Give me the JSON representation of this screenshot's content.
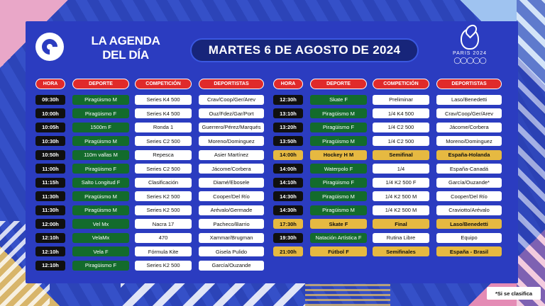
{
  "header": {
    "agenda_line1": "LA AGENDA",
    "agenda_line2": "DEL DÍA",
    "date": "MARTES 6 DE AGOSTO DE 2024",
    "games_label": "PARIS 2024"
  },
  "columns": {
    "hora": "HORA",
    "deporte": "DEPORTE",
    "competicion": "COMPETICIÓN",
    "deportistas": "DEPORTISTAS"
  },
  "left_rows": [
    {
      "hora": "09:30h",
      "deporte": "Piragüismo M",
      "competicion": "Series K4 500",
      "deportistas": "Crav/Coop/Ger/Arev"
    },
    {
      "hora": "10:00h",
      "deporte": "Piragüismo F",
      "competicion": "Series K4 500",
      "deportistas": "Ouz/Fdez/Gar/Port"
    },
    {
      "hora": "10:05h",
      "deporte": "1500m F",
      "competicion": "Ronda 1",
      "deportistas": "Guerrero/Pérez/Marqués"
    },
    {
      "hora": "10:30h",
      "deporte": "Piragüismo M",
      "competicion": "Series C2 500",
      "deportistas": "Moreno/Dominguez"
    },
    {
      "hora": "10:50h",
      "deporte": "110m vallas M",
      "competicion": "Repesca",
      "deportistas": "Asier Martínez"
    },
    {
      "hora": "11:00h",
      "deporte": "Piragüismo F",
      "competicion": "Series C2 500",
      "deportistas": "Jácome/Corbera"
    },
    {
      "hora": "11:15h",
      "deporte": "Salto Longitud F",
      "competicion": "Clasificación",
      "deportistas": "Diamé/Ebosele"
    },
    {
      "hora": "11:30h",
      "deporte": "Piragüismo M",
      "competicion": "Series K2 500",
      "deportistas": "Cooper/Del Río"
    },
    {
      "hora": "11:30h",
      "deporte": "Piragüismo M",
      "competicion": "Series K2 500",
      "deportistas": "Arévalo/Germade"
    },
    {
      "hora": "12:00h",
      "deporte": "Vel Mx",
      "competicion": "Nacra 17",
      "deportistas": "Pacheco/Barrio"
    },
    {
      "hora": "12:10h",
      "deporte": "VelaMx",
      "competicion": "470",
      "deportistas": "Xammar/Brugman"
    },
    {
      "hora": "12:10h",
      "deporte": "Vela F",
      "competicion": "Fórmula Kite",
      "deportistas": "Gisela Pulido"
    },
    {
      "hora": "12:10h",
      "deporte": "Piragüismo F",
      "competicion": "Series K2 500",
      "deportistas": "García/Ouzande"
    }
  ],
  "right_rows": [
    {
      "hora": "12:30h",
      "deporte": "Skate F",
      "competicion": "Preliminar",
      "deportistas": "Laso/Benedetti",
      "highlight": false
    },
    {
      "hora": "13:10h",
      "deporte": "Piragüismo M",
      "competicion": "1/4 K4 500",
      "deportistas": "Crav/Coop/Ger/Arev",
      "highlight": false
    },
    {
      "hora": "13:20h",
      "deporte": "Piragüismo F",
      "competicion": "1/4 C2 500",
      "deportistas": "Jácome/Corbera",
      "highlight": false
    },
    {
      "hora": "13:50h",
      "deporte": "Piragüismo M",
      "competicion": "1/4 C2 500",
      "deportistas": "Moreno/Dominguez",
      "highlight": false
    },
    {
      "hora": "14:00h",
      "deporte": "Hockey H M",
      "competicion": "Semifinal",
      "deportistas": "España-Holanda",
      "highlight": true
    },
    {
      "hora": "14:00h",
      "deporte": "Waterpolo F",
      "competicion": "1/4",
      "deportistas": "España-Canadá",
      "highlight": false
    },
    {
      "hora": "14:10h",
      "deporte": "Piragüismo F",
      "competicion": "1/4 K2 500 F",
      "deportistas": "García/Ouzande*",
      "highlight": false
    },
    {
      "hora": "14:30h",
      "deporte": "Piragüismo M",
      "competicion": "1/4 K2 500 M",
      "deportistas": "Cooper/Del Río",
      "highlight": false
    },
    {
      "hora": "14:30h",
      "deporte": "Piragüismo M",
      "competicion": "1/4 K2 500 M",
      "deportistas": "Craviotto/Arévalo",
      "highlight": false
    },
    {
      "hora": "17:30h",
      "deporte": "Skate F",
      "competicion": "Final",
      "deportistas": "Laso/Benedetti",
      "highlight": true
    },
    {
      "hora": "19:30h",
      "deporte": "Natación Artística F",
      "competicion": "Rutina Libre",
      "deportistas": "Equipo",
      "highlight": false
    },
    {
      "hora": "21:00h",
      "deporte": "Fútbol F",
      "competicion": "Semifinales",
      "deportistas": "España - Brasil",
      "highlight": true
    }
  ],
  "footnote": "*Si se clasifica",
  "colors": {
    "panel": "#2b3cc0",
    "header_red": "#e02a2a",
    "sport_green": "#136b2c",
    "highlight_gold": "#e6b941"
  }
}
